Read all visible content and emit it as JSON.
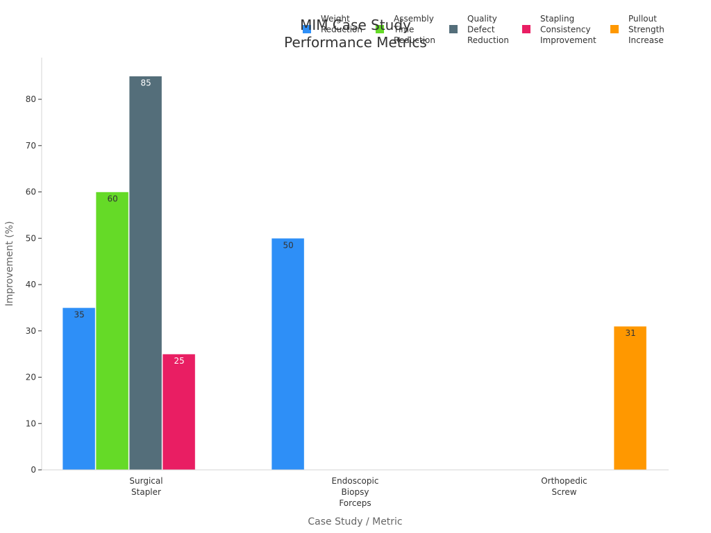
{
  "chart_data": {
    "type": "bar",
    "title_lines": [
      "MIM Case Study",
      "Performance Metrics"
    ],
    "xlabel": "Case Study / Metric",
    "ylabel": "Improvement (%)",
    "ylim": [
      0,
      89
    ],
    "yticks": [
      0,
      10,
      20,
      30,
      40,
      50,
      60,
      70,
      80
    ],
    "grid": false,
    "legend_position": "top-right",
    "categories": [
      [
        "Surgical",
        "Stapler"
      ],
      [
        "Endoscopic",
        "Biopsy",
        "Forceps"
      ],
      [
        "Orthopedic",
        "Screw"
      ]
    ],
    "series": [
      {
        "name": [
          "Weight",
          "Reduction"
        ],
        "color": "#2E8FF7",
        "label_color": "#333333",
        "values": [
          35,
          50,
          null
        ]
      },
      {
        "name": [
          "Assembly",
          "Time",
          "Reduction"
        ],
        "color": "#65DA27",
        "label_color": "#333333",
        "values": [
          60,
          null,
          null
        ]
      },
      {
        "name": [
          "Quality",
          "Defect",
          "Reduction"
        ],
        "color": "#546E7A",
        "label_color": "#ffffff",
        "values": [
          85,
          null,
          null
        ]
      },
      {
        "name": [
          "Stapling",
          "Consistency",
          "Improvement"
        ],
        "color": "#E91E63",
        "label_color": "#ffffff",
        "values": [
          25,
          null,
          null
        ]
      },
      {
        "name": [
          "Pullout",
          "Strength",
          "Increase"
        ],
        "color": "#FF9800",
        "label_color": "#333333",
        "values": [
          null,
          null,
          31
        ]
      }
    ]
  }
}
